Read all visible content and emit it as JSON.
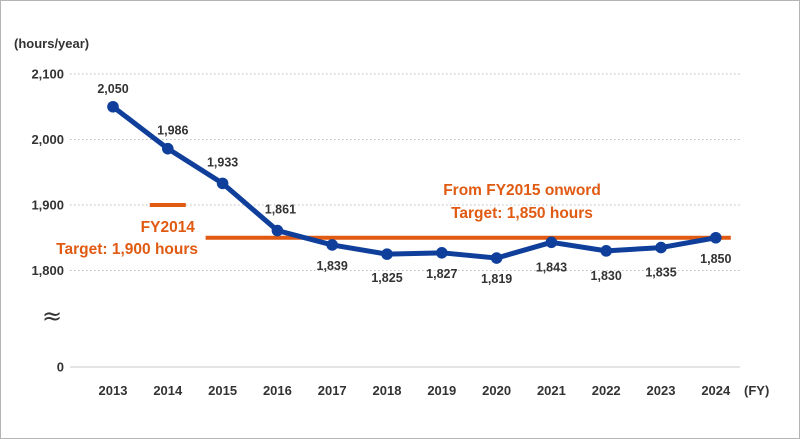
{
  "chart_data": {
    "type": "line",
    "title": "",
    "xlabel": "",
    "ylabel": "",
    "y_unit": "(hours/year)",
    "x_unit": "(FY)",
    "categories": [
      "2013",
      "2014",
      "2015",
      "2016",
      "2017",
      "2018",
      "2019",
      "2020",
      "2021",
      "2022",
      "2023",
      "2024"
    ],
    "values": [
      2050,
      1986,
      1933,
      1861,
      1839,
      1825,
      1827,
      1819,
      1843,
      1830,
      1835,
      1850
    ],
    "value_labels": [
      "2,050",
      "1,986",
      "1,933",
      "1,861",
      "1,839",
      "1,825",
      "1,827",
      "1,819",
      "1,843",
      "1,830",
      "1,835",
      "1,850"
    ],
    "yticks": [
      {
        "value": 2100,
        "label": "2,100"
      },
      {
        "value": 2000,
        "label": "2,000"
      },
      {
        "value": 1900,
        "label": "1,900"
      },
      {
        "value": 1800,
        "label": "1,800"
      },
      {
        "value": 0,
        "label": "0"
      }
    ],
    "axis_break": true,
    "axis_break_symbol": "≈",
    "grid": true,
    "line_color": "#0f3f9a",
    "target_color": "#e05a12",
    "targets": [
      {
        "value": 1900,
        "from": "2014",
        "to": "2014",
        "lines": [
          "FY2014",
          "Target: 1,900 hours"
        ]
      },
      {
        "value": 1850,
        "from": "2015",
        "to": "2024",
        "lines": [
          "From FY2015 onword",
          "Target: 1,850 hours"
        ]
      }
    ]
  }
}
